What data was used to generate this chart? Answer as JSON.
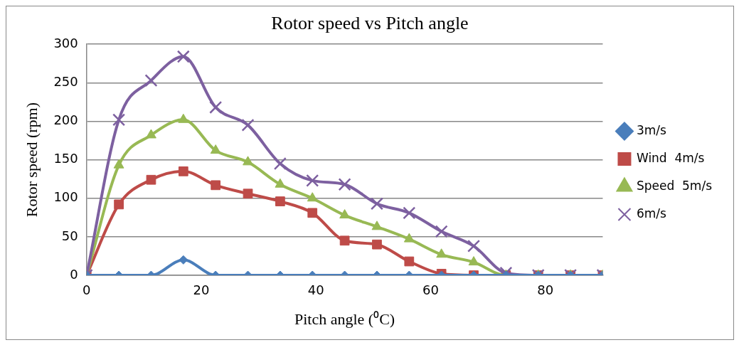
{
  "chart_data": {
    "type": "line",
    "title": "Rotor speed vs Pitch angle",
    "xlabel": "Pitch angle (⁰C)",
    "ylabel": "Rotor speed (rpm)",
    "x": [
      0,
      5.625,
      11.25,
      16.875,
      22.5,
      28.125,
      33.75,
      39.375,
      45,
      50.625,
      56.25,
      61.875,
      67.5,
      73.125,
      78.75,
      84.375,
      90
    ],
    "xlim": [
      0,
      90
    ],
    "xticks": [
      0,
      20,
      40,
      60,
      80
    ],
    "ylim": [
      0,
      300
    ],
    "yticks": [
      0,
      50,
      100,
      150,
      200,
      250,
      300
    ],
    "grid": "y",
    "legend": "right",
    "series": [
      {
        "name": "3m/s",
        "color": "#4a7ebb",
        "marker": "diamond",
        "values": [
          0,
          0,
          0,
          20,
          0,
          0,
          0,
          0,
          0,
          0,
          0,
          0,
          0,
          0,
          0,
          0,
          0
        ]
      },
      {
        "name": "Wind  4m/s",
        "color": "#be4b48",
        "marker": "square",
        "values": [
          0,
          92,
          124,
          135,
          117,
          106,
          96,
          81,
          45,
          40,
          18,
          2,
          0,
          0,
          0,
          0,
          0
        ]
      },
      {
        "name": "Speed  5m/s",
        "color": "#98b954",
        "marker": "triangle",
        "values": [
          0,
          143,
          182,
          202,
          162,
          147,
          118,
          100,
          78,
          63,
          47,
          27,
          17,
          0,
          0,
          0,
          0
        ]
      },
      {
        "name": "6m/s",
        "color": "#7d60a0",
        "marker": "cross",
        "values": [
          0,
          202,
          253,
          284,
          218,
          195,
          145,
          123,
          118,
          93,
          81,
          57,
          38,
          3,
          0,
          0,
          0
        ]
      }
    ]
  }
}
